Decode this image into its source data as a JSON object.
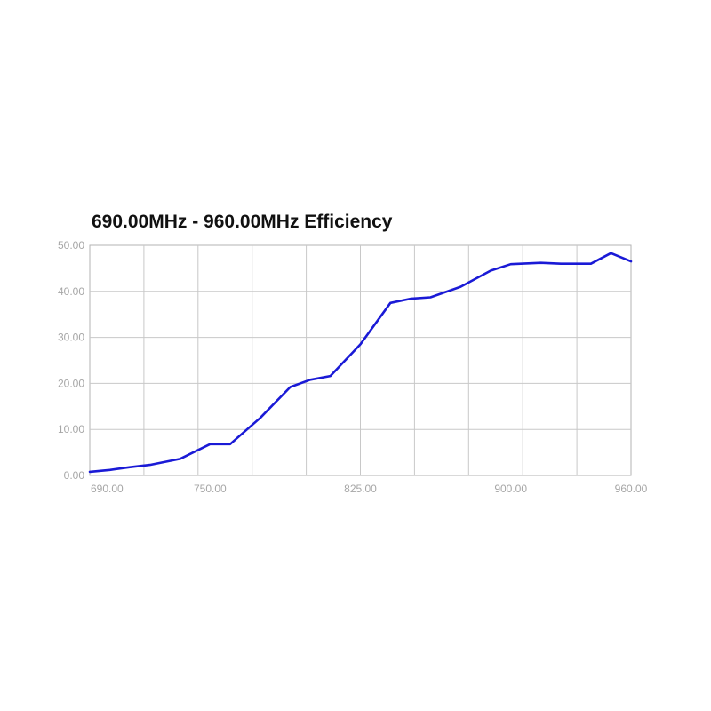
{
  "chart_data": {
    "type": "line",
    "title": "690.00MHz - 960.00MHz Efficiency",
    "xlabel": "",
    "ylabel": "",
    "xlim": [
      690,
      960
    ],
    "ylim": [
      0,
      50
    ],
    "x_ticks": [
      690,
      750,
      825,
      900,
      960
    ],
    "x_tick_labels": [
      "690.00",
      "750.00",
      "825.00",
      "900.00",
      "960.00"
    ],
    "x_ticks_format_note": "",
    "y_ticks": [
      0,
      10,
      20,
      30,
      40,
      50
    ],
    "y_tick_labels": [
      "0.00",
      "10.00",
      "20.00",
      "30.00",
      "40.00",
      "50.00"
    ],
    "grid": true,
    "series": [
      {
        "name": "",
        "color": "#1a1ad6",
        "x": [
          690,
          700,
          710,
          720,
          735,
          750,
          760,
          775,
          790,
          800,
          810,
          825,
          840,
          850,
          860,
          875,
          890,
          900,
          915,
          925,
          940,
          950,
          960
        ],
        "y": [
          0.8,
          1.2,
          1.8,
          2.3,
          3.6,
          6.8,
          6.8,
          12.5,
          19.2,
          20.8,
          21.6,
          28.5,
          37.5,
          38.4,
          38.7,
          41.0,
          44.5,
          45.9,
          46.2,
          46.0,
          46.0,
          48.3,
          46.5
        ]
      }
    ]
  }
}
